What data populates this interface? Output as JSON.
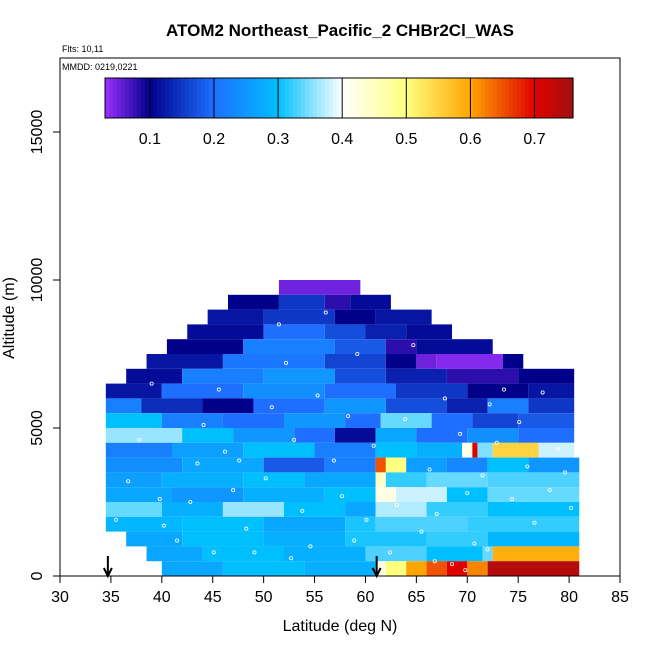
{
  "chart_data": {
    "type": "heatmap",
    "title": "ATOM2 Northeast_Pacific_2 CHBr2Cl_WAS",
    "annotations": {
      "flights": "Flts: 10,11",
      "dates": "MMDD: 0219,0221"
    },
    "xlabel": "Latitude (deg N)",
    "ylabel": "Altitude (m)",
    "xlim": [
      30,
      85
    ],
    "ylim": [
      0,
      17500
    ],
    "x_ticks": [
      30,
      35,
      40,
      45,
      50,
      55,
      60,
      65,
      70,
      75,
      80,
      85
    ],
    "y_ticks": [
      0,
      5000,
      10000,
      15000
    ],
    "colorbar": {
      "range": [
        0.03,
        0.76
      ],
      "ticks": [
        0.1,
        0.2,
        0.3,
        0.4,
        0.5,
        0.6,
        0.7
      ],
      "stops": [
        {
          "v": 0.03,
          "color": "#9b30ff"
        },
        {
          "v": 0.1,
          "color": "#00008b"
        },
        {
          "v": 0.2,
          "color": "#1e6fff"
        },
        {
          "v": 0.3,
          "color": "#00bfff"
        },
        {
          "v": 0.4,
          "color": "#ffffff"
        },
        {
          "v": 0.5,
          "color": "#ffff80"
        },
        {
          "v": 0.6,
          "color": "#ffa500"
        },
        {
          "v": 0.7,
          "color": "#e00000"
        },
        {
          "v": 0.76,
          "color": "#a01010"
        }
      ]
    },
    "markers_latitude": [
      34.7,
      61.1
    ],
    "rows": [
      {
        "alt": [
          9500,
          10000
        ],
        "cells": [
          [
            51.5,
            59.5,
            0.05
          ]
        ]
      },
      {
        "alt": [
          9000,
          9500
        ],
        "cells": [
          [
            46.5,
            51.5,
            0.1
          ],
          [
            51.5,
            56,
            0.15
          ],
          [
            56,
            58.5,
            0.08
          ],
          [
            58.5,
            62.5,
            0.11
          ]
        ]
      },
      {
        "alt": [
          8500,
          9000
        ],
        "cells": [
          [
            44.5,
            50,
            0.12
          ],
          [
            50,
            57,
            0.15
          ],
          [
            57,
            61,
            0.1
          ],
          [
            61,
            66.5,
            0.12
          ]
        ]
      },
      {
        "alt": [
          8000,
          8500
        ],
        "cells": [
          [
            42.5,
            50,
            0.11
          ],
          [
            50,
            56,
            0.2
          ],
          [
            56,
            60,
            0.17
          ],
          [
            60,
            64,
            0.13
          ],
          [
            64,
            68.5,
            0.11
          ]
        ]
      },
      {
        "alt": [
          7500,
          8000
        ],
        "cells": [
          [
            40.5,
            48,
            0.1
          ],
          [
            48,
            57,
            0.22
          ],
          [
            57,
            62,
            0.18
          ],
          [
            62,
            65,
            0.08
          ],
          [
            65,
            72.5,
            0.11
          ]
        ]
      },
      {
        "alt": [
          7000,
          7500
        ],
        "cells": [
          [
            38.5,
            46,
            0.12
          ],
          [
            46,
            56,
            0.21
          ],
          [
            56,
            62,
            0.16
          ],
          [
            62,
            65,
            0.1
          ],
          [
            65,
            67,
            0.05
          ],
          [
            67,
            73.5,
            0.04
          ],
          [
            73.5,
            75.5,
            0.1
          ]
        ]
      },
      {
        "alt": [
          6500,
          7000
        ],
        "cells": [
          [
            36.5,
            42,
            0.11
          ],
          [
            42,
            50,
            0.22
          ],
          [
            50,
            57,
            0.25
          ],
          [
            57,
            62,
            0.17
          ],
          [
            62,
            68,
            0.13
          ],
          [
            68,
            75,
            0.08
          ],
          [
            75,
            80.5,
            0.1
          ]
        ]
      },
      {
        "alt": [
          6000,
          6500
        ],
        "cells": [
          [
            34.5,
            40,
            0.12
          ],
          [
            40,
            48,
            0.2
          ],
          [
            48,
            56,
            0.24
          ],
          [
            56,
            63,
            0.2
          ],
          [
            63,
            70,
            0.15
          ],
          [
            70,
            76,
            0.1
          ],
          [
            76,
            80.5,
            0.12
          ]
        ]
      },
      {
        "alt": [
          5500,
          6000
        ],
        "cells": [
          [
            34.5,
            38,
            0.22
          ],
          [
            38,
            44,
            0.14
          ],
          [
            44,
            49,
            0.1
          ],
          [
            49,
            56,
            0.2
          ],
          [
            56,
            62,
            0.25
          ],
          [
            62,
            68,
            0.17
          ],
          [
            68,
            72,
            0.13
          ],
          [
            72,
            76,
            0.22
          ],
          [
            76,
            80.5,
            0.15
          ]
        ]
      },
      {
        "alt": [
          5000,
          5500
        ],
        "cells": [
          [
            34.5,
            40,
            0.3
          ],
          [
            40,
            46,
            0.22
          ],
          [
            46,
            52,
            0.2
          ],
          [
            52,
            58,
            0.25
          ],
          [
            58,
            61.5,
            0.2
          ],
          [
            61.5,
            66.5,
            0.34
          ],
          [
            66.5,
            70.5,
            0.2
          ],
          [
            70.5,
            75,
            0.16
          ],
          [
            75,
            80.5,
            0.18
          ]
        ]
      },
      {
        "alt": [
          4500,
          5000
        ],
        "cells": [
          [
            34.5,
            42,
            0.36
          ],
          [
            42,
            47,
            0.3
          ],
          [
            47,
            53,
            0.25
          ],
          [
            53,
            57,
            0.2
          ],
          [
            57,
            61,
            0.11
          ],
          [
            61,
            65,
            0.27
          ],
          [
            65,
            70,
            0.2
          ],
          [
            70,
            75,
            0.24
          ],
          [
            75,
            80.5,
            0.2
          ]
        ]
      },
      {
        "alt": [
          4000,
          4500
        ],
        "cells": [
          [
            34.5,
            41,
            0.22
          ],
          [
            41,
            48,
            0.26
          ],
          [
            48,
            55,
            0.3
          ],
          [
            55,
            61,
            0.22
          ],
          [
            61,
            65,
            0.3
          ],
          [
            65,
            69.5,
            0.28
          ],
          [
            69.5,
            70.5,
            0.42
          ],
          [
            70.5,
            71,
            0.7
          ],
          [
            71,
            72.5,
            0.35
          ],
          [
            72.5,
            77,
            0.55
          ],
          [
            77,
            80.5,
            0.38
          ]
        ]
      },
      {
        "alt": [
          3500,
          4000
        ],
        "cells": [
          [
            34.5,
            42,
            0.24
          ],
          [
            42,
            50,
            0.27
          ],
          [
            50,
            56,
            0.18
          ],
          [
            56,
            61,
            0.22
          ],
          [
            61,
            62,
            0.65
          ],
          [
            62,
            64,
            0.5
          ],
          [
            64,
            68,
            0.26
          ],
          [
            68,
            72,
            0.23
          ],
          [
            72,
            76,
            0.3
          ],
          [
            76,
            81,
            0.25
          ]
        ]
      },
      {
        "alt": [
          3000,
          3500
        ],
        "cells": [
          [
            34.5,
            40,
            0.26
          ],
          [
            40,
            48,
            0.28
          ],
          [
            48,
            54,
            0.3
          ],
          [
            54,
            61,
            0.27
          ],
          [
            61,
            62,
            0.45
          ],
          [
            62,
            66,
            0.32
          ],
          [
            66,
            72,
            0.34
          ],
          [
            72,
            81,
            0.33
          ]
        ]
      },
      {
        "alt": [
          2500,
          3000
        ],
        "cells": [
          [
            34.5,
            41,
            0.27
          ],
          [
            41,
            48,
            0.25
          ],
          [
            48,
            56,
            0.28
          ],
          [
            56,
            61,
            0.3
          ],
          [
            61,
            63,
            0.42
          ],
          [
            63,
            68,
            0.38
          ],
          [
            68,
            72,
            0.3
          ],
          [
            72,
            81,
            0.34
          ]
        ]
      },
      {
        "alt": [
          2000,
          2500
        ],
        "cells": [
          [
            34.5,
            40,
            0.34
          ],
          [
            40,
            46,
            0.28
          ],
          [
            46,
            52,
            0.36
          ],
          [
            52,
            58,
            0.3
          ],
          [
            58,
            61,
            0.27
          ],
          [
            61,
            66,
            0.37
          ],
          [
            66,
            72,
            0.32
          ],
          [
            72,
            81,
            0.3
          ]
        ]
      },
      {
        "alt": [
          1500,
          2000
        ],
        "cells": [
          [
            34.5,
            42,
            0.29
          ],
          [
            42,
            50,
            0.3
          ],
          [
            50,
            58,
            0.27
          ],
          [
            58,
            61,
            0.31
          ],
          [
            61,
            70,
            0.33
          ],
          [
            70,
            81,
            0.32
          ]
        ]
      },
      {
        "alt": [
          1000,
          1500
        ],
        "cells": [
          [
            36.5,
            42,
            0.27
          ],
          [
            42,
            50,
            0.3
          ],
          [
            50,
            58,
            0.28
          ],
          [
            58,
            66,
            0.31
          ],
          [
            66,
            72,
            0.32
          ],
          [
            72,
            81,
            0.29
          ]
        ]
      },
      {
        "alt": [
          500,
          1000
        ],
        "cells": [
          [
            38.5,
            44,
            0.27
          ],
          [
            44,
            52,
            0.3
          ],
          [
            52,
            60,
            0.28
          ],
          [
            60,
            66,
            0.33
          ],
          [
            66,
            71.5,
            0.3
          ],
          [
            71.5,
            72.5,
            0.34
          ],
          [
            72.5,
            81,
            0.59
          ]
        ]
      },
      {
        "alt": [
          0,
          500
        ],
        "cells": [
          [
            40,
            46,
            0.27
          ],
          [
            46,
            54,
            0.3
          ],
          [
            54,
            61,
            0.28
          ],
          [
            61,
            62,
            0.42
          ],
          [
            62,
            64,
            0.5
          ],
          [
            64,
            66,
            0.6
          ],
          [
            66,
            68,
            0.65
          ],
          [
            68,
            70,
            0.7
          ],
          [
            70,
            72,
            0.62
          ],
          [
            72,
            81,
            0.74
          ]
        ]
      }
    ],
    "samples": [
      [
        40.2,
        1700
      ],
      [
        41.5,
        1200
      ],
      [
        42.8,
        2500
      ],
      [
        43.5,
        3800
      ],
      [
        44.1,
        5100
      ],
      [
        45.6,
        6300
      ],
      [
        46.2,
        4200
      ],
      [
        47.0,
        2900
      ],
      [
        48.3,
        1600
      ],
      [
        49.1,
        800
      ],
      [
        50.2,
        3300
      ],
      [
        50.8,
        5700
      ],
      [
        51.5,
        8500
      ],
      [
        52.2,
        7200
      ],
      [
        53.0,
        4600
      ],
      [
        53.8,
        2200
      ],
      [
        54.6,
        1000
      ],
      [
        55.3,
        6100
      ],
      [
        56.1,
        8900
      ],
      [
        56.9,
        3900
      ],
      [
        57.7,
        2700
      ],
      [
        58.3,
        5400
      ],
      [
        59.2,
        7500
      ],
      [
        60.1,
        1900
      ],
      [
        60.8,
        4400
      ],
      [
        61.6,
        3100
      ],
      [
        62.4,
        800
      ],
      [
        63.1,
        2400
      ],
      [
        63.9,
        5300
      ],
      [
        64.7,
        7800
      ],
      [
        65.5,
        1500
      ],
      [
        66.3,
        3600
      ],
      [
        67.0,
        2100
      ],
      [
        67.8,
        6000
      ],
      [
        68.5,
        400
      ],
      [
        69.3,
        4800
      ],
      [
        70.0,
        2800
      ],
      [
        70.7,
        1100
      ],
      [
        71.5,
        3400
      ],
      [
        72.2,
        5800
      ],
      [
        72.9,
        4500
      ],
      [
        73.6,
        6300
      ],
      [
        74.4,
        2600
      ],
      [
        75.1,
        5200
      ],
      [
        75.9,
        3700
      ],
      [
        76.6,
        1800
      ],
      [
        77.4,
        6200
      ],
      [
        78.1,
        2900
      ],
      [
        78.9,
        4300
      ],
      [
        79.6,
        3500
      ],
      [
        80.2,
        2300
      ],
      [
        35.5,
        1900
      ],
      [
        36.7,
        3200
      ],
      [
        37.8,
        4600
      ],
      [
        39.0,
        6500
      ],
      [
        39.8,
        2600
      ],
      [
        45.1,
        800
      ],
      [
        47.6,
        3900
      ],
      [
        52.7,
        600
      ],
      [
        58.9,
        1200
      ],
      [
        61.2,
        300
      ],
      [
        66.8,
        500
      ],
      [
        69.8,
        200
      ],
      [
        72.0,
        900
      ]
    ]
  }
}
